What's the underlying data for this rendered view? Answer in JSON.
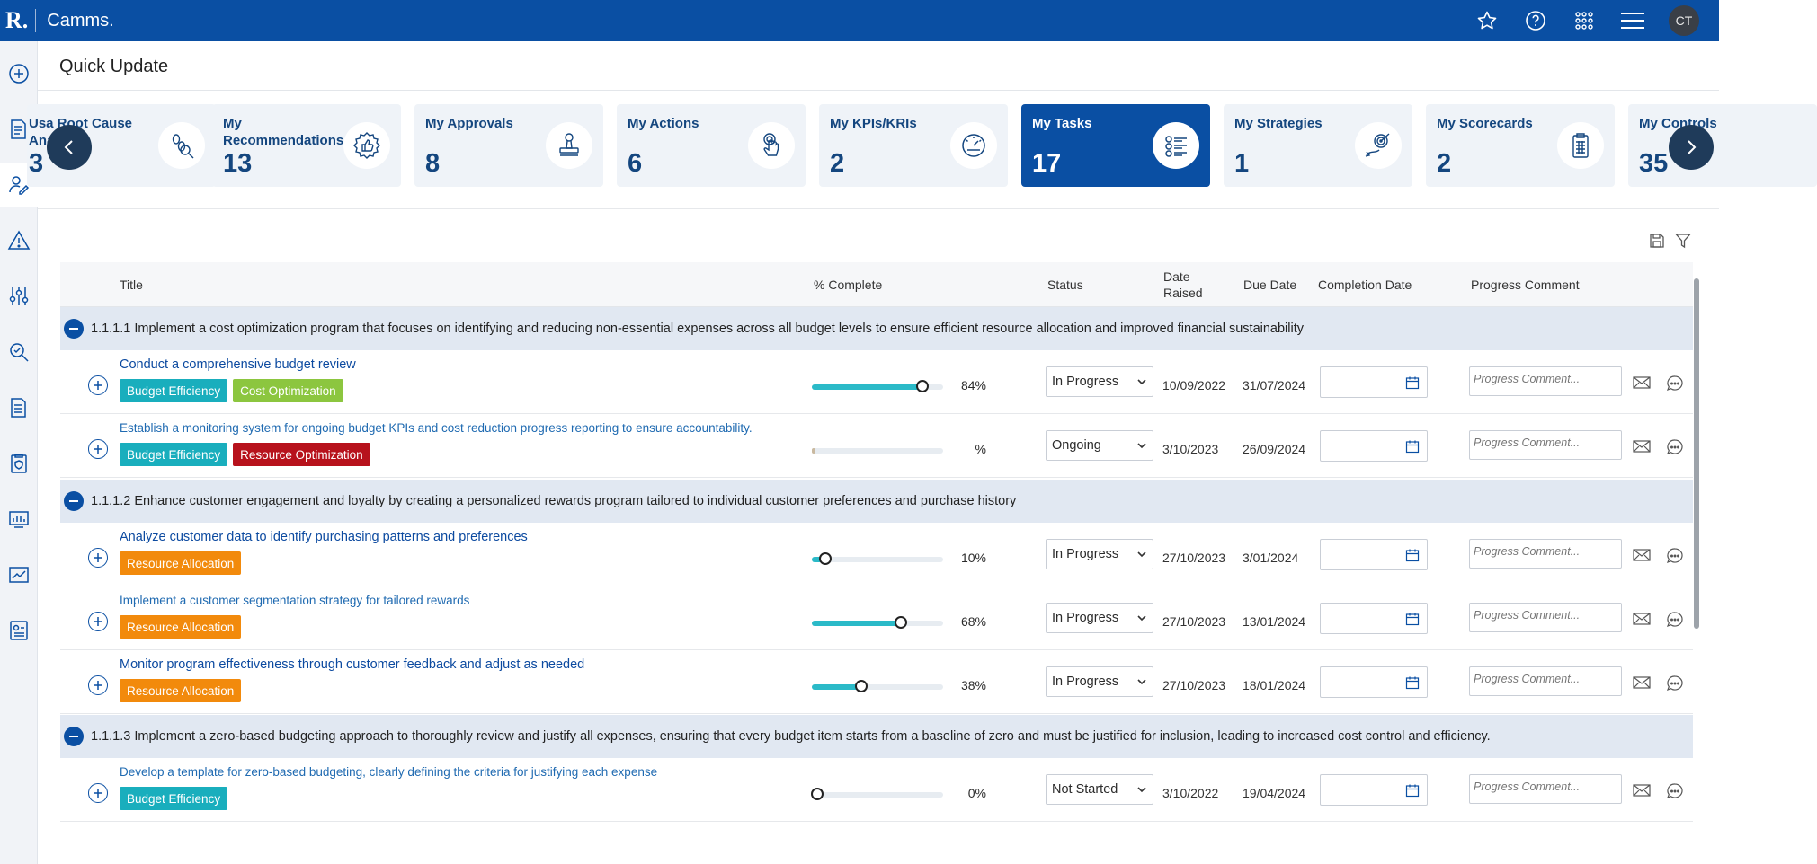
{
  "app": {
    "logo_text": "R.",
    "brand": "Camms."
  },
  "topbar": {
    "avatar_initials": "CT"
  },
  "page": {
    "title": "Quick Update"
  },
  "cards": [
    {
      "label": "Usa Root Cause Analysis",
      "count": "3",
      "icon": "footprints-search-icon"
    },
    {
      "label": "My Recommendations",
      "count": "13",
      "icon": "thumbs-up-icon"
    },
    {
      "label": "My Approvals",
      "count": "8",
      "icon": "stamp-icon"
    },
    {
      "label": "My Actions",
      "count": "6",
      "icon": "hand-pointer-icon"
    },
    {
      "label": "My KPIs/KRIs",
      "count": "2",
      "icon": "gauge-icon"
    },
    {
      "label": "My Tasks",
      "count": "17",
      "icon": "checklist-icon",
      "active": true
    },
    {
      "label": "My Strategies",
      "count": "1",
      "icon": "target-icon"
    },
    {
      "label": "My Scorecards",
      "count": "2",
      "icon": "clipboard-icon"
    },
    {
      "label": "My Controls",
      "count": "35",
      "icon": "controls-icon"
    }
  ],
  "grid": {
    "headers": {
      "title": "Title",
      "complete": "% Complete",
      "status": "Status",
      "date_raised": "Date Raised",
      "due_date": "Due Date",
      "completion_date": "Completion Date",
      "progress_comment": "Progress Comment"
    },
    "groups": [
      {
        "label": "1.1.1.1 Implement a cost optimization program that focuses on identifying and reducing non-essential expenses across all budget levels to ensure efficient resource allocation and improved financial sustainability"
      },
      {
        "label": "1.1.1.2 Enhance customer engagement and loyalty by creating a personalized rewards program tailored to individual customer preferences and purchase history"
      },
      {
        "label": "1.1.1.3 Implement a zero-based budgeting approach to thoroughly review and justify all expenses, ensuring that every budget item starts from a baseline of zero and must be justified for inclusion, leading to increased cost control and efficiency."
      }
    ],
    "rows": [
      {
        "title": "Conduct a comprehensive budget review",
        "tags": [
          "Budget Efficiency",
          "Cost Optimization"
        ],
        "percent": 84,
        "percent_text": "84%",
        "status": "In Progress",
        "date_raised": "10/09/2022",
        "due_date": "31/07/2024",
        "comment_placeholder": "Progress Comment..."
      },
      {
        "title": "Establish a monitoring system for ongoing budget KPIs and cost reduction progress reporting to ensure accountability.",
        "tags": [
          "Budget Efficiency",
          "Resource Optimization"
        ],
        "percent": 0,
        "percent_text": "%",
        "status": "Ongoing",
        "date_raised": "3/10/2023",
        "due_date": "26/09/2024",
        "comment_placeholder": "Progress Comment..."
      },
      {
        "title": "Analyze customer data to identify purchasing patterns and preferences",
        "tags": [
          "Resource Allocation"
        ],
        "percent": 10,
        "percent_text": "10%",
        "status": "In Progress",
        "date_raised": "27/10/2023",
        "due_date": "3/01/2024",
        "comment_placeholder": "Progress Comment..."
      },
      {
        "title": "Implement a customer segmentation strategy for tailored rewards",
        "tags": [
          "Resource Allocation"
        ],
        "percent": 68,
        "percent_text": "68%",
        "status": "In Progress",
        "date_raised": "27/10/2023",
        "due_date": "13/01/2024",
        "comment_placeholder": "Progress Comment..."
      },
      {
        "title": "Monitor program effectiveness through customer feedback and adjust as needed",
        "tags": [
          "Resource Allocation"
        ],
        "percent": 38,
        "percent_text": "38%",
        "status": "In Progress",
        "date_raised": "27/10/2023",
        "due_date": "18/01/2024",
        "comment_placeholder": "Progress Comment..."
      },
      {
        "title": "Develop a template for zero-based budgeting, clearly defining the criteria for justifying each expense",
        "tags": [
          "Budget Efficiency"
        ],
        "percent": 0,
        "percent_text": "0%",
        "status": "Not Started",
        "date_raised": "3/10/2022",
        "due_date": "19/04/2024",
        "comment_placeholder": "Progress Comment..."
      }
    ]
  },
  "tag_colors": {
    "Budget Efficiency": "#19aebd",
    "Cost Optimization": "#8cc63f",
    "Resource Optimization": "#b7121c",
    "Resource Allocation": "#f28a0c"
  },
  "colors": {
    "primary": "#0a4fa3",
    "slider_fill": "#2bbac8"
  }
}
